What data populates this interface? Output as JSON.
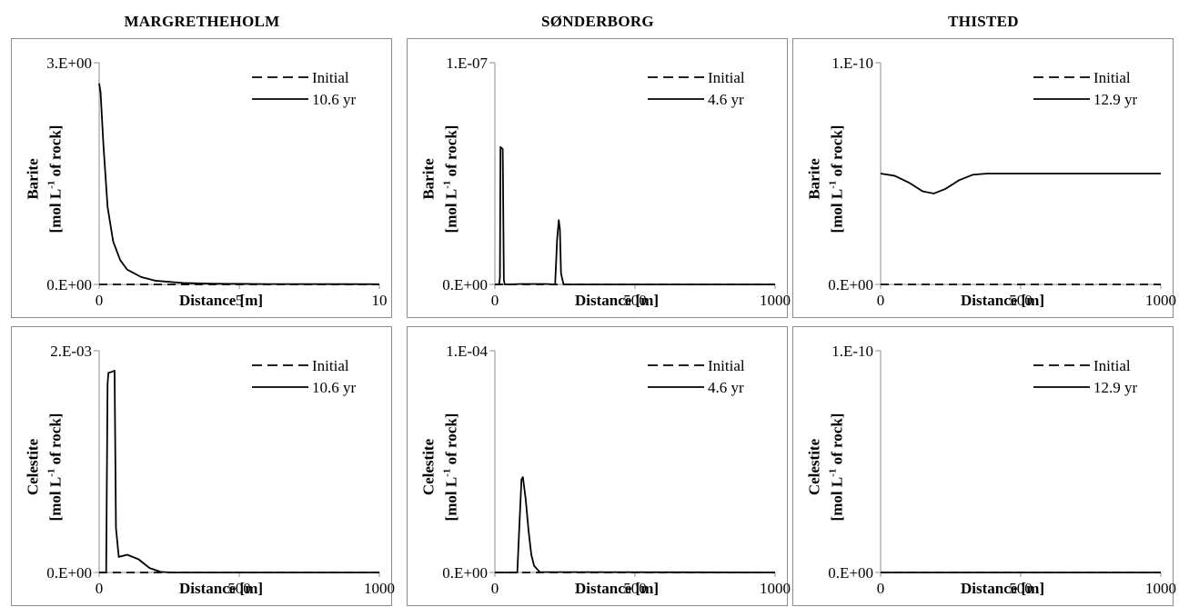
{
  "site_titles": [
    "MARGRETHEHOLM",
    "SØNDERBORG",
    "THISTED"
  ],
  "colors": {
    "line": "#000000",
    "axis": "#8c8c8c",
    "border": "#8c8c8c"
  },
  "chart_data": [
    {
      "type": "line",
      "site": "MARGRETHEHOLM",
      "row": 0,
      "col": 0,
      "ylabel_main": "Barite",
      "ylabel_unit_prefix": "[mol L",
      "ylabel_unit_sup": "-1",
      "ylabel_unit_suffix": " of rock]",
      "xlabel": "Distance [m]",
      "xlim": [
        0,
        10
      ],
      "xticks": [
        0,
        5,
        10
      ],
      "xtick_labels": [
        "0",
        "5",
        "10"
      ],
      "ylim": [
        0,
        3
      ],
      "ytick_labels": [
        "0.E+00",
        "3.E+00"
      ],
      "legend_position": "top-right",
      "series": [
        {
          "name": "Initial",
          "dash": "dashed",
          "x": [
            0,
            10
          ],
          "y": [
            0,
            0
          ]
        },
        {
          "name": "10.6 yr",
          "dash": "solid",
          "x": [
            0,
            0.05,
            0.15,
            0.3,
            0.5,
            0.75,
            1.0,
            1.5,
            2,
            3,
            4,
            6,
            10
          ],
          "y": [
            2.72,
            2.6,
            1.9,
            1.05,
            0.58,
            0.33,
            0.2,
            0.1,
            0.05,
            0.02,
            0.01,
            0.005,
            0.003
          ]
        }
      ]
    },
    {
      "type": "line",
      "site": "SØNDERBORG",
      "row": 0,
      "col": 1,
      "ylabel_main": "Barite",
      "ylabel_unit_prefix": "[mol L",
      "ylabel_unit_sup": "-1",
      "ylabel_unit_suffix": " of rock]",
      "xlabel": "Distance [m]",
      "xlim": [
        0,
        1000
      ],
      "xticks": [
        0,
        500,
        1000
      ],
      "xtick_labels": [
        "0",
        "500",
        "1000"
      ],
      "ylim": [
        0,
        1e-07
      ],
      "ytick_labels": [
        "0.E+00",
        "1.E-07"
      ],
      "legend_position": "top-right",
      "series": [
        {
          "name": "Initial",
          "dash": "dashed",
          "x": [
            0,
            1000
          ],
          "y": [
            0,
            0
          ]
        },
        {
          "name": "4.6 yr",
          "dash": "solid",
          "x": [
            0,
            15,
            18,
            20,
            28,
            32,
            35,
            100,
            180,
            215,
            222,
            228,
            232,
            236,
            245,
            260,
            1000
          ],
          "y": [
            0,
            0,
            3e-09,
            6.2e-08,
            6.1e-08,
            2e-09,
            0,
            2e-10,
            2e-10,
            0,
            2e-08,
            2.9e-08,
            2.5e-08,
            5e-09,
            0,
            0,
            0
          ]
        }
      ]
    },
    {
      "type": "line",
      "site": "THISTED",
      "row": 0,
      "col": 2,
      "ylabel_main": "Barite",
      "ylabel_unit_prefix": "[mol L",
      "ylabel_unit_sup": "-1",
      "ylabel_unit_suffix": " of rock]",
      "xlabel": "Distance [m]",
      "xlim": [
        0,
        1000
      ],
      "xticks": [
        0,
        500,
        1000
      ],
      "xtick_labels": [
        "0",
        "500",
        "1000"
      ],
      "ylim": [
        0,
        1e-10
      ],
      "ytick_labels": [
        "0.E+00",
        "1.E-10"
      ],
      "legend_position": "top-right",
      "series": [
        {
          "name": "Initial",
          "dash": "dashed",
          "x": [
            0,
            1000
          ],
          "y": [
            0,
            0
          ]
        },
        {
          "name": "12.9 yr",
          "dash": "solid",
          "x": [
            0,
            50,
            100,
            150,
            190,
            230,
            280,
            330,
            380,
            500,
            700,
            1000
          ],
          "y": [
            5e-11,
            4.9e-11,
            4.6e-11,
            4.2e-11,
            4.1e-11,
            4.3e-11,
            4.7e-11,
            4.95e-11,
            5e-11,
            5e-11,
            5e-11,
            5e-11
          ]
        }
      ]
    },
    {
      "type": "line",
      "site": "MARGRETHEHOLM",
      "row": 1,
      "col": 0,
      "ylabel_main": "Celestite",
      "ylabel_unit_prefix": "[mol L",
      "ylabel_unit_sup": "-1",
      "ylabel_unit_suffix": " of rock]",
      "xlabel": "Distance [m]",
      "xlim": [
        0,
        1000
      ],
      "xticks": [
        0,
        500,
        1000
      ],
      "xtick_labels": [
        "0",
        "500",
        "1000"
      ],
      "ylim": [
        0,
        0.002
      ],
      "ytick_labels": [
        "0.E+00",
        "2.E-03"
      ],
      "legend_position": "top-right",
      "series": [
        {
          "name": "Initial",
          "dash": "dashed",
          "x": [
            0,
            1000
          ],
          "y": [
            0,
            0
          ]
        },
        {
          "name": "10.6 yr",
          "dash": "solid",
          "x": [
            0,
            25,
            30,
            33,
            45,
            55,
            60,
            70,
            100,
            140,
            180,
            220,
            260,
            1000
          ],
          "y": [
            0,
            0,
            0.0017,
            0.0018,
            0.00181,
            0.00182,
            0.0004,
            0.00014,
            0.00016,
            0.00012,
            4e-05,
            5e-06,
            0,
            0
          ]
        }
      ]
    },
    {
      "type": "line",
      "site": "SØNDERBORG",
      "row": 1,
      "col": 1,
      "ylabel_main": "Celestite",
      "ylabel_unit_prefix": "[mol L",
      "ylabel_unit_sup": "-1",
      "ylabel_unit_suffix": " of rock]",
      "xlabel": "Distance [m]",
      "xlim": [
        0,
        1000
      ],
      "xticks": [
        0,
        500,
        1000
      ],
      "xtick_labels": [
        "0",
        "500",
        "1000"
      ],
      "ylim": [
        0,
        0.0001
      ],
      "ytick_labels": [
        "0.E+00",
        "1.E-04"
      ],
      "legend_position": "top-right",
      "series": [
        {
          "name": "Initial",
          "dash": "dashed",
          "x": [
            0,
            1000
          ],
          "y": [
            0,
            0
          ]
        },
        {
          "name": "4.6 yr",
          "dash": "solid",
          "x": [
            0,
            80,
            87,
            95,
            100,
            110,
            120,
            130,
            140,
            160,
            1000
          ],
          "y": [
            0,
            0,
            2e-05,
            4.2e-05,
            4.3e-05,
            3.3e-05,
            1.9e-05,
            8e-06,
            3e-06,
            2e-07,
            0
          ]
        }
      ]
    },
    {
      "type": "line",
      "site": "THISTED",
      "row": 1,
      "col": 2,
      "ylabel_main": "Celestite",
      "ylabel_unit_prefix": "[mol L",
      "ylabel_unit_sup": "-1",
      "ylabel_unit_suffix": " of rock]",
      "xlabel": "Distance [m]",
      "xlim": [
        0,
        1000
      ],
      "xticks": [
        0,
        500,
        1000
      ],
      "xtick_labels": [
        "0",
        "500",
        "1000"
      ],
      "ylim": [
        0,
        1e-10
      ],
      "ytick_labels": [
        "0.E+00",
        "1.E-10"
      ],
      "legend_position": "top-right",
      "series": [
        {
          "name": "Initial",
          "dash": "dashed",
          "x": [
            0,
            1000
          ],
          "y": [
            0,
            0
          ]
        },
        {
          "name": "12.9 yr",
          "dash": "solid",
          "x": [
            0,
            1000
          ],
          "y": [
            0,
            0
          ]
        }
      ]
    }
  ]
}
